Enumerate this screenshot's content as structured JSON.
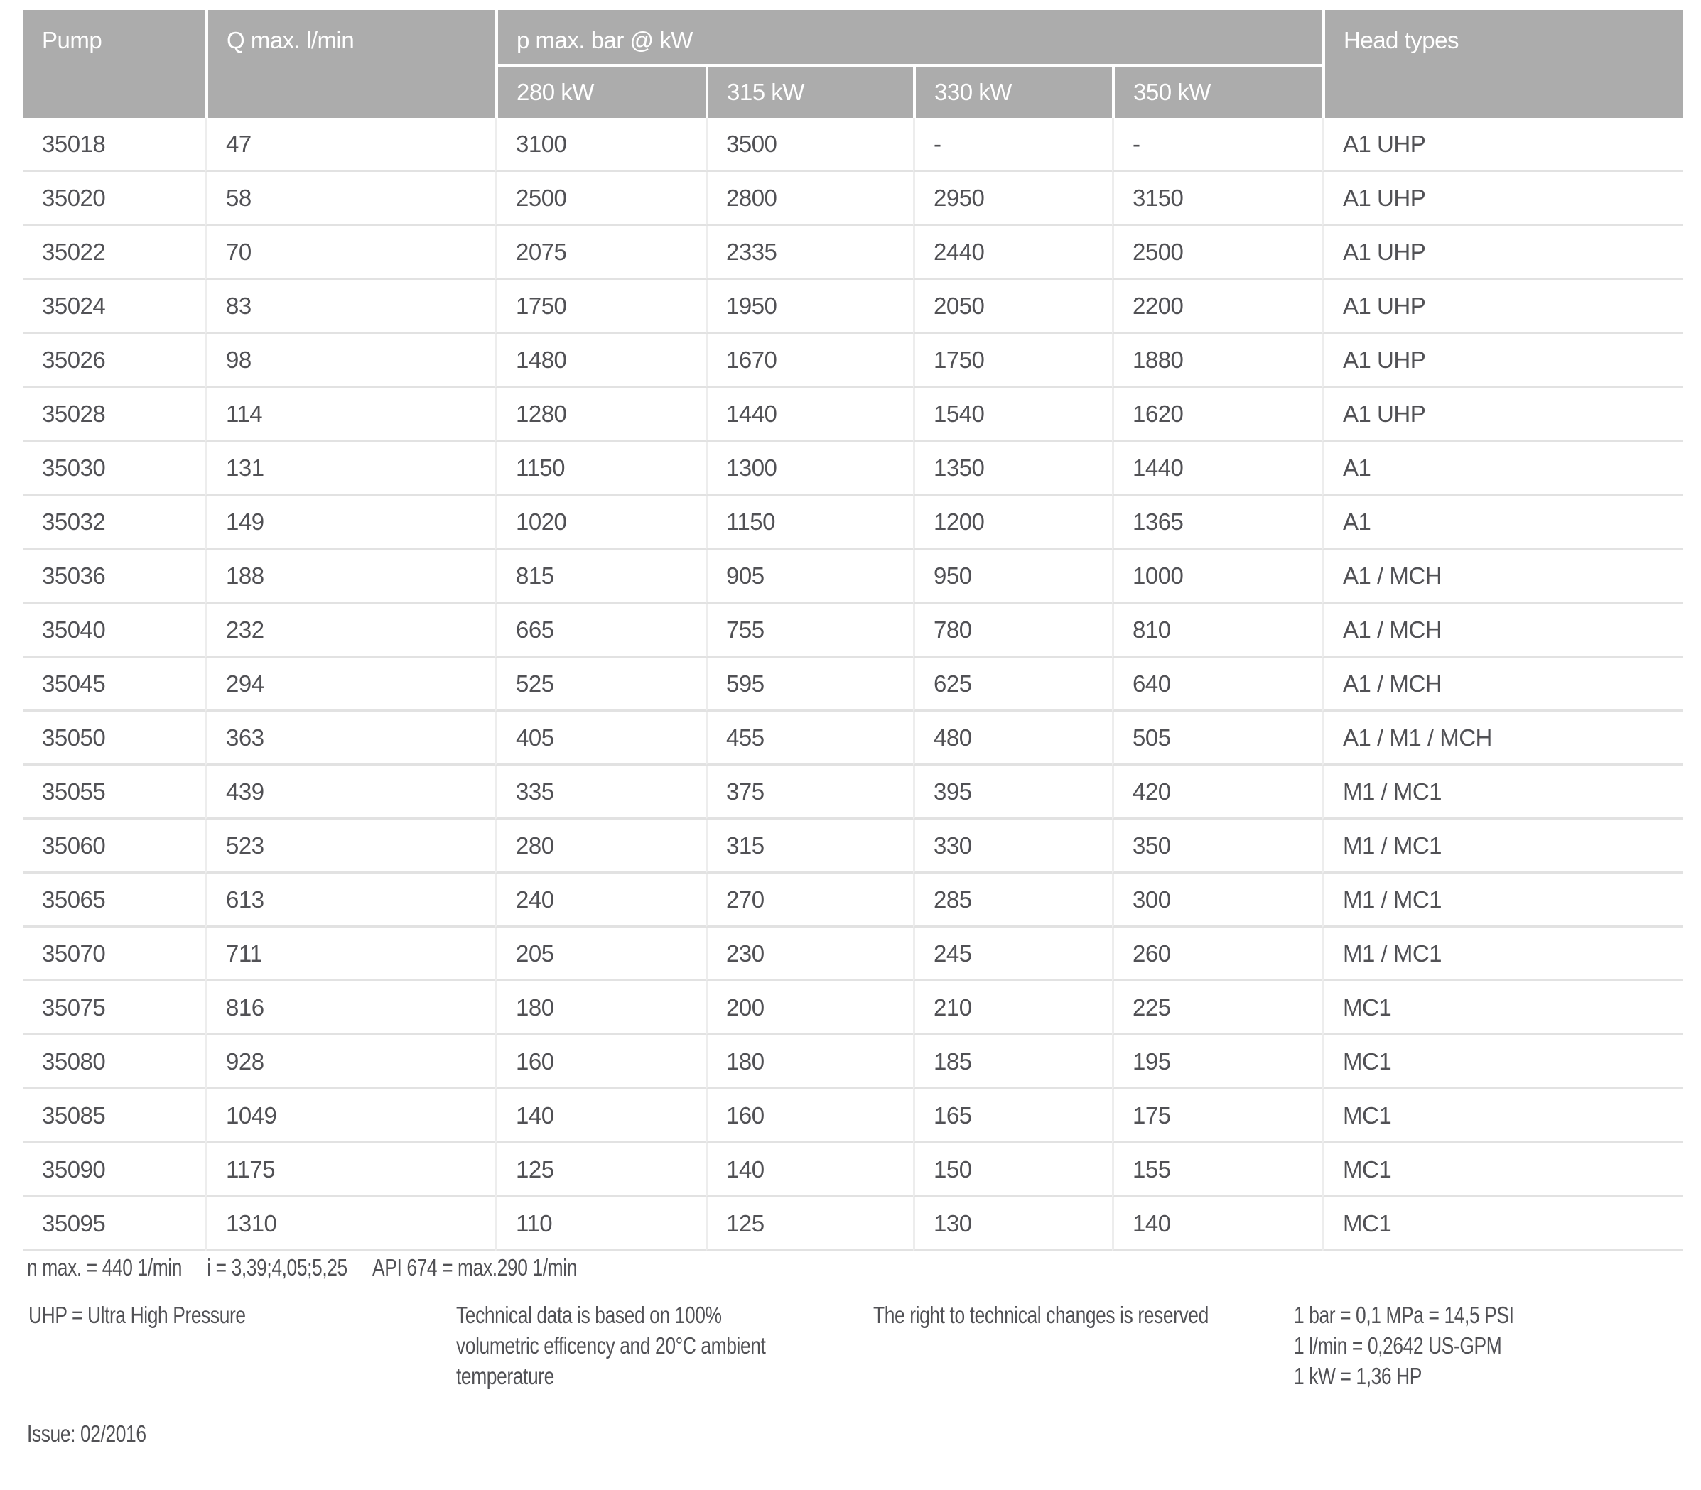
{
  "colors": {
    "header_bg": "#acacac",
    "header_text": "#ffffff",
    "body_text": "#515155",
    "row_divider": "#e2e2e2",
    "col_divider": "#ededed",
    "page_bg": "#ffffff"
  },
  "table": {
    "header": {
      "pump": "Pump",
      "q_max": "Q max. l/min",
      "p_max": "p max. bar @ kW",
      "kw": [
        "280 kW",
        "315 kW",
        "330 kW",
        "350 kW"
      ],
      "head_types": "Head types"
    },
    "rows": [
      [
        "35018",
        "47",
        "3100",
        "3500",
        "-",
        "-",
        "A1 UHP"
      ],
      [
        "35020",
        "58",
        "2500",
        "2800",
        "2950",
        "3150",
        "A1 UHP"
      ],
      [
        "35022",
        "70",
        "2075",
        "2335",
        "2440",
        "2500",
        "A1 UHP"
      ],
      [
        "35024",
        "83",
        "1750",
        "1950",
        "2050",
        "2200",
        "A1 UHP"
      ],
      [
        "35026",
        "98",
        "1480",
        "1670",
        "1750",
        "1880",
        "A1 UHP"
      ],
      [
        "35028",
        "114",
        "1280",
        "1440",
        "1540",
        "1620",
        "A1 UHP"
      ],
      [
        "35030",
        "131",
        "1150",
        "1300",
        "1350",
        "1440",
        "A1"
      ],
      [
        "35032",
        "149",
        "1020",
        "1150",
        "1200",
        "1365",
        "A1"
      ],
      [
        "35036",
        "188",
        "815",
        "905",
        "950",
        "1000",
        "A1 / MCH"
      ],
      [
        "35040",
        "232",
        "665",
        "755",
        "780",
        "810",
        "A1 / MCH"
      ],
      [
        "35045",
        "294",
        "525",
        "595",
        "625",
        "640",
        "A1 / MCH"
      ],
      [
        "35050",
        "363",
        "405",
        "455",
        "480",
        "505",
        "A1 / M1 / MCH"
      ],
      [
        "35055",
        "439",
        "335",
        "375",
        "395",
        "420",
        "M1 / MC1"
      ],
      [
        "35060",
        "523",
        "280",
        "315",
        "330",
        "350",
        "M1 / MC1"
      ],
      [
        "35065",
        "613",
        "240",
        "270",
        "285",
        "300",
        "M1 / MC1"
      ],
      [
        "35070",
        "711",
        "205",
        "230",
        "245",
        "260",
        "M1 / MC1"
      ],
      [
        "35075",
        "816",
        "180",
        "200",
        "210",
        "225",
        "MC1"
      ],
      [
        "35080",
        "928",
        "160",
        "180",
        "185",
        "195",
        "MC1"
      ],
      [
        "35085",
        "1049",
        "140",
        "160",
        "165",
        "175",
        "MC1"
      ],
      [
        "35090",
        "1175",
        "125",
        "140",
        "150",
        "155",
        "MC1"
      ],
      [
        "35095",
        "1310",
        "110",
        "125",
        "130",
        "140",
        "MC1"
      ]
    ]
  },
  "notes": {
    "n_max": "n max. = 440 1/min",
    "gear_ratio": "i = 3,39;4,05;5,25",
    "api674": "API 674 = max.290 1/min"
  },
  "footer": {
    "uhp": "UHP = Ultra High Pressure",
    "technical_lines": [
      "Technical data is based on 100%",
      "volumetric efficency and 20°C ambient",
      "temperature"
    ],
    "rights": "The right to technical changes is reserved",
    "conversion_lines": [
      "1 bar = 0,1 MPa = 14,5 PSI",
      "1 l/min = 0,2642 US-GPM",
      "1 kW = 1,36 HP"
    ]
  },
  "issue": "Issue: 02/2016"
}
